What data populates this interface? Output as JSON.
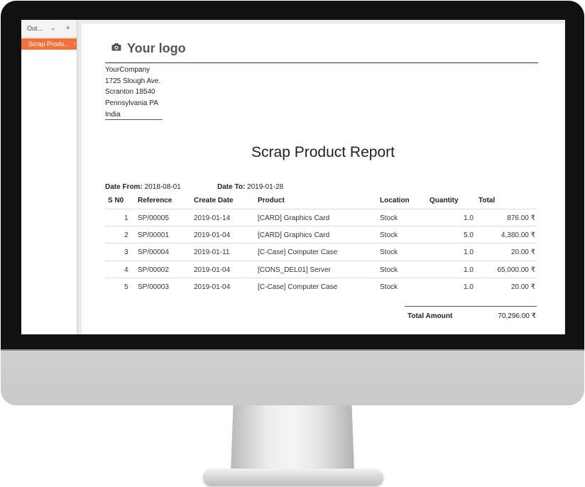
{
  "sidebar": {
    "tab_label": "Out...",
    "tab_chevron": "⌄",
    "tab_close": "×",
    "item_label": "Scrap Produ...",
    "item_mark": "↑"
  },
  "report": {
    "logo_text": "Your logo",
    "company": [
      "YourCompany",
      "1725 Slough Ave.",
      "Scranton 18540",
      "Pennsylvania PA",
      "India"
    ],
    "title": "Scrap Product Report",
    "date_from_label": "Date From:",
    "date_from": "2018-08-01",
    "date_to_label": "Date To:",
    "date_to": "2019-01-28",
    "columns": [
      "S N0",
      "Reference",
      "Create Date",
      "Product",
      "Location",
      "Quantity",
      "Total"
    ],
    "rows": [
      {
        "sn": "1",
        "ref": "SP/00005",
        "date": "2019-01-14",
        "product": "[CARD] Graphics Card",
        "location": "Stock",
        "qty": "1.0",
        "total": "876.00 ₹"
      },
      {
        "sn": "2",
        "ref": "SP/00001",
        "date": "2019-01-04",
        "product": "[CARD] Graphics Card",
        "location": "Stock",
        "qty": "5.0",
        "total": "4,380.00 ₹"
      },
      {
        "sn": "3",
        "ref": "SP/00004",
        "date": "2019-01-11",
        "product": "[C-Case] Computer Case",
        "location": "Stock",
        "qty": "1.0",
        "total": "20.00 ₹"
      },
      {
        "sn": "4",
        "ref": "SP/00002",
        "date": "2019-01-04",
        "product": "[CONS_DEL01] Server",
        "location": "Stock",
        "qty": "1.0",
        "total": "65,000.00 ₹"
      },
      {
        "sn": "5",
        "ref": "SP/00003",
        "date": "2019-01-04",
        "product": "[C-Case] Computer Case",
        "location": "Stock",
        "qty": "1.0",
        "total": "20.00 ₹"
      }
    ],
    "total_label": "Total Amount",
    "total_value": "70,296.00 ₹"
  },
  "colors": {
    "accent": "#f0733f",
    "bezel": "#111111"
  }
}
